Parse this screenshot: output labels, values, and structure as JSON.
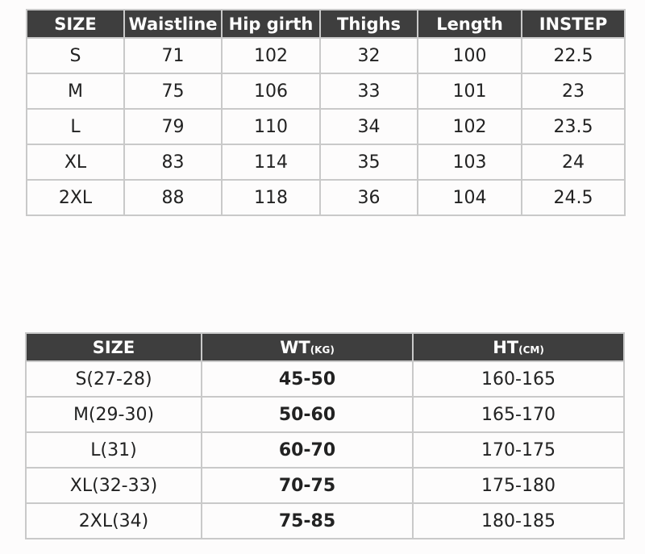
{
  "measurements_table": {
    "headers": [
      "SIZE",
      "Waistline",
      "Hip girth",
      "Thighs",
      "Length",
      "INSTEP"
    ],
    "rows": [
      [
        "S",
        "71",
        "102",
        "32",
        "100",
        "22.5"
      ],
      [
        "M",
        "75",
        "106",
        "33",
        "101",
        "23"
      ],
      [
        "L",
        "79",
        "110",
        "34",
        "102",
        "23.5"
      ],
      [
        "XL",
        "83",
        "114",
        "35",
        "103",
        "24"
      ],
      [
        "2XL",
        "88",
        "118",
        "36",
        "104",
        "24.5"
      ]
    ]
  },
  "fit_table": {
    "headers": [
      {
        "label": "SIZE",
        "unit": ""
      },
      {
        "label": "WT",
        "unit": "(KG)"
      },
      {
        "label": "HT",
        "unit": "(CM)"
      }
    ],
    "rows": [
      [
        "S(27-28)",
        "45-50",
        "160-165"
      ],
      [
        "M(29-30)",
        "50-60",
        "165-170"
      ],
      [
        "L(31)",
        "60-70",
        "170-175"
      ],
      [
        "XL(32-33)",
        "70-75",
        "175-180"
      ],
      [
        "2XL(34)",
        "75-85",
        "180-185"
      ]
    ]
  },
  "colors": {
    "header_bg": "#3e3e3e",
    "border": "#c9c9c9"
  }
}
